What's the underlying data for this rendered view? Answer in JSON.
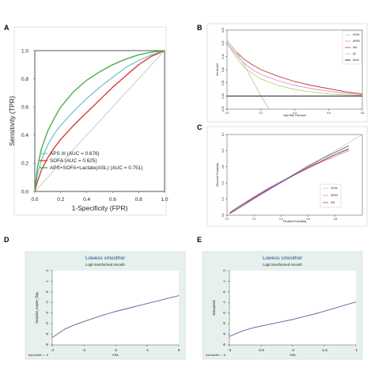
{
  "figure": {
    "panel_letters": [
      "A",
      "B",
      "C",
      "D",
      "E"
    ]
  },
  "chart_data": [
    {
      "panel": "A",
      "type": "line",
      "xlabel": "1-Specificity (FPR)",
      "ylabel": "Sensitivity (TPR)",
      "xlim": [
        0,
        1
      ],
      "ylim": [
        0,
        1
      ],
      "xticks": [
        "0.0",
        "0.2",
        "0.4",
        "0.6",
        "0.8",
        "1.0"
      ],
      "yticks": [
        "0.0",
        "0.2",
        "0.4",
        "0.6",
        "0.8",
        "1.0"
      ],
      "legend_position": "bottom-right",
      "reference_line": {
        "x": [
          0,
          1
        ],
        "y": [
          0,
          1
        ],
        "color": "#bdbdbd"
      },
      "series": [
        {
          "name": "APS III (AUC = 0.676)",
          "color": "#7ec8c8",
          "x": [
            0,
            0.02,
            0.05,
            0.1,
            0.15,
            0.2,
            0.3,
            0.4,
            0.5,
            0.6,
            0.7,
            0.8,
            0.9,
            1.0
          ],
          "y": [
            0,
            0.12,
            0.22,
            0.33,
            0.41,
            0.47,
            0.57,
            0.66,
            0.74,
            0.81,
            0.88,
            0.93,
            0.97,
            1.0
          ]
        },
        {
          "name": "SOFA (AUC = 0.625)",
          "color": "#d93b3b",
          "x": [
            0,
            0.02,
            0.05,
            0.1,
            0.15,
            0.2,
            0.3,
            0.4,
            0.5,
            0.6,
            0.7,
            0.8,
            0.9,
            1.0
          ],
          "y": [
            0,
            0.07,
            0.15,
            0.24,
            0.31,
            0.37,
            0.47,
            0.56,
            0.65,
            0.74,
            0.82,
            0.9,
            0.96,
            1.0
          ]
        },
        {
          "name": "APS+SOFA+Lactate(ASL) (AUC = 0.751)",
          "color": "#4cae4c",
          "x": [
            0,
            0.02,
            0.05,
            0.1,
            0.15,
            0.2,
            0.3,
            0.4,
            0.5,
            0.6,
            0.7,
            0.8,
            0.9,
            1.0
          ],
          "y": [
            0,
            0.17,
            0.3,
            0.43,
            0.52,
            0.6,
            0.71,
            0.79,
            0.85,
            0.9,
            0.94,
            0.97,
            0.99,
            1.0
          ]
        }
      ]
    },
    {
      "panel": "B",
      "type": "line",
      "xlabel": "High Risk Threshold",
      "ylabel": "Net Benefit",
      "xlim": [
        0,
        0.8
      ],
      "ylim": [
        -0.05,
        0.25
      ],
      "xticks": [
        "0.0",
        "0.2",
        "0.4",
        "0.6",
        "0.8"
      ],
      "yticks": [
        "-0.05",
        "0.00",
        "0.05",
        "0.10",
        "0.15",
        "0.20",
        "0.25"
      ],
      "legend_position": "top-right",
      "series": [
        {
          "name": "SOFA",
          "color": "#b6d96a",
          "x": [
            0,
            0.05,
            0.1,
            0.15,
            0.2,
            0.3,
            0.4,
            0.5,
            0.6,
            0.7,
            0.8
          ],
          "y": [
            0.2,
            0.15,
            0.11,
            0.085,
            0.065,
            0.04,
            0.025,
            0.015,
            0.008,
            0.004,
            0.002
          ]
        },
        {
          "name": "APSIII",
          "color": "#e08ad6",
          "x": [
            0,
            0.05,
            0.1,
            0.15,
            0.2,
            0.3,
            0.4,
            0.5,
            0.6,
            0.7,
            0.8
          ],
          "y": [
            0.2,
            0.16,
            0.125,
            0.1,
            0.082,
            0.058,
            0.04,
            0.028,
            0.018,
            0.01,
            0.005
          ]
        },
        {
          "name": "ASL",
          "color": "#c03a3a",
          "x": [
            0,
            0.05,
            0.1,
            0.15,
            0.2,
            0.3,
            0.4,
            0.5,
            0.6,
            0.7,
            0.8
          ],
          "y": [
            0.21,
            0.17,
            0.14,
            0.118,
            0.1,
            0.075,
            0.055,
            0.04,
            0.028,
            0.016,
            0.008
          ]
        },
        {
          "name": "All",
          "color": "#bdbdbd",
          "x": [
            0,
            0.05,
            0.1,
            0.15,
            0.2,
            0.25
          ],
          "y": [
            0.21,
            0.17,
            0.12,
            0.06,
            0.0,
            -0.05
          ]
        },
        {
          "name": "None",
          "color": "#000000",
          "x": [
            0,
            0.8
          ],
          "y": [
            0,
            0
          ]
        }
      ]
    },
    {
      "panel": "C",
      "type": "line",
      "xlabel": "Predicted Probability",
      "ylabel": "Observed Probability",
      "xlim": [
        0,
        1
      ],
      "ylim": [
        0,
        1
      ],
      "xticks": [
        "0.0",
        "0.2",
        "0.4",
        "0.6",
        "0.8"
      ],
      "yticks": [
        "0.0",
        "0.2",
        "0.4",
        "0.6",
        "0.8",
        "1.0"
      ],
      "legend_position": "bottom-right",
      "reference_line": {
        "x": [
          0,
          1
        ],
        "y": [
          0,
          1
        ],
        "color": "#bdbdbd"
      },
      "series": [
        {
          "name": "SOFA",
          "color": "#b6d96a",
          "x": [
            0.02,
            0.1,
            0.2,
            0.3,
            0.4,
            0.5,
            0.6,
            0.7,
            0.8,
            0.9
          ],
          "y": [
            0.02,
            0.11,
            0.22,
            0.32,
            0.42,
            0.51,
            0.6,
            0.68,
            0.76,
            0.83
          ]
        },
        {
          "name": "APSIII",
          "color": "#e08ad6",
          "x": [
            0.02,
            0.1,
            0.2,
            0.3,
            0.4,
            0.5,
            0.6,
            0.7,
            0.8,
            0.9
          ],
          "y": [
            0.03,
            0.12,
            0.23,
            0.33,
            0.42,
            0.5,
            0.58,
            0.66,
            0.73,
            0.8
          ]
        },
        {
          "name": "ASL",
          "color": "#c03a3a",
          "x": [
            0.02,
            0.1,
            0.2,
            0.3,
            0.4,
            0.5,
            0.6,
            0.7,
            0.8,
            0.9
          ],
          "y": [
            0.03,
            0.12,
            0.22,
            0.32,
            0.41,
            0.5,
            0.59,
            0.67,
            0.75,
            0.82
          ]
        },
        {
          "name": "",
          "color": "#4a5fc0",
          "x": [
            0.02,
            0.1,
            0.2,
            0.3,
            0.4,
            0.5,
            0.6,
            0.7,
            0.8,
            0.9
          ],
          "y": [
            0.02,
            0.1,
            0.21,
            0.31,
            0.41,
            0.51,
            0.61,
            0.7,
            0.78,
            0.86
          ]
        }
      ]
    },
    {
      "panel": "D",
      "type": "line",
      "title": "Lowess smoother",
      "subtitle": "Logit transformed smooth",
      "xlabel": "ASL",
      "ylabel": "hospital_expire_flag",
      "note": "bandwidth = .8",
      "xlim": [
        -4,
        0
      ],
      "ylim": [
        -5,
        2
      ],
      "xticks": [
        "-4",
        "-3",
        "-2",
        "-1",
        "0"
      ],
      "yticks": [
        "-5",
        "-4",
        "-3",
        "-2",
        "-1",
        "0",
        "1",
        "2"
      ],
      "background": "#e6f0ec",
      "series": [
        {
          "name": "",
          "color": "#3e4f8f",
          "x": [
            -4,
            -3.6,
            -3.2,
            -2.8,
            -2.4,
            -2,
            -1.6,
            -1.2,
            -0.8,
            -0.4,
            0
          ],
          "y": [
            -4.3,
            -3.5,
            -3.0,
            -2.6,
            -2.2,
            -1.85,
            -1.55,
            -1.25,
            -0.95,
            -0.65,
            -0.35
          ]
        }
      ]
    },
    {
      "panel": "E",
      "type": "line",
      "title": "Lowess smoother",
      "subtitle": "Logit transformed smooth",
      "xlabel": "ASL",
      "ylabel": "hrExpired",
      "note": "bandwidth = .8",
      "xlim": [
        -3,
        -1
      ],
      "ylim": [
        -5,
        2
      ],
      "xticks": [
        "-3",
        "-2.5",
        "-2",
        "-1.5",
        "-1"
      ],
      "yticks": [
        "-5",
        "-4",
        "-3",
        "-2",
        "-1",
        "0",
        "1",
        "2"
      ],
      "background": "#e6f0ec",
      "series": [
        {
          "name": "",
          "color": "#3e4f8f",
          "x": [
            -3,
            -2.8,
            -2.6,
            -2.4,
            -2.2,
            -2,
            -1.8,
            -1.6,
            -1.4,
            -1.2,
            -1
          ],
          "y": [
            -4.2,
            -3.7,
            -3.35,
            -3.1,
            -2.85,
            -2.6,
            -2.3,
            -2.0,
            -1.65,
            -1.3,
            -0.95
          ]
        }
      ]
    }
  ]
}
